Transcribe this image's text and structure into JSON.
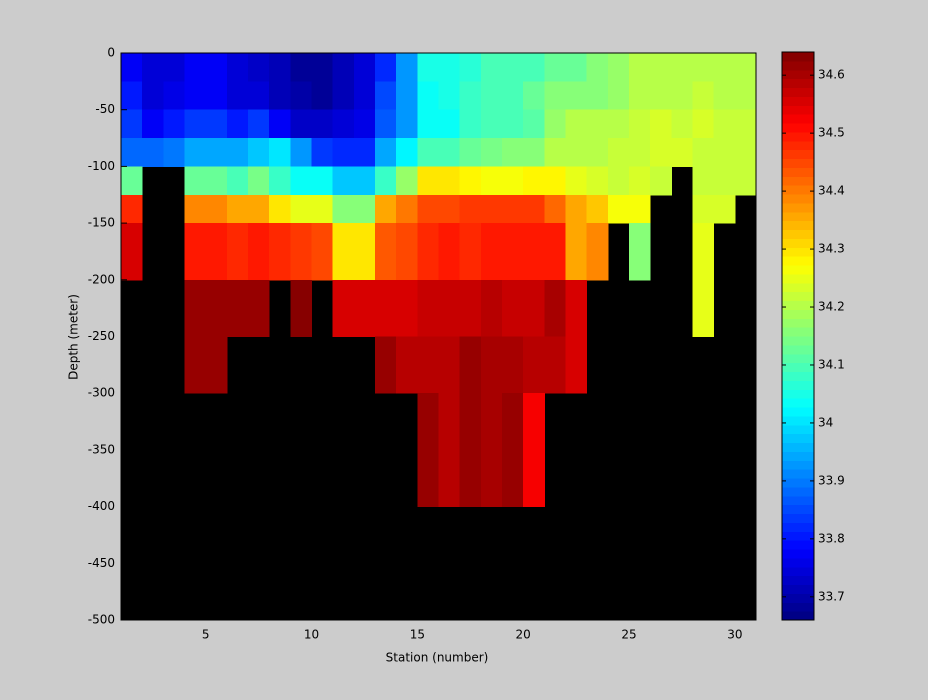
{
  "chart_data": {
    "type": "heatmap",
    "xlabel": "Station (number)",
    "ylabel": "Depth (meter)",
    "x_edges": [
      1,
      2,
      3,
      4,
      5,
      6,
      7,
      8,
      9,
      10,
      11,
      12,
      13,
      14,
      15,
      16,
      17,
      18,
      19,
      20,
      21,
      22,
      23,
      24,
      25,
      26,
      27,
      28,
      29,
      30,
      31
    ],
    "y_edges": [
      0,
      -25,
      -50,
      -75,
      -100,
      -125,
      -150,
      -200,
      -250,
      -300,
      -400
    ],
    "values": [
      [
        33.78,
        33.75,
        33.75,
        33.77,
        33.77,
        33.75,
        33.73,
        33.72,
        33.69,
        33.68,
        33.72,
        33.74,
        33.82,
        33.93,
        34.05,
        34.05,
        34.07,
        34.09,
        34.1,
        34.1,
        34.12,
        34.13,
        34.15,
        34.17,
        34.2,
        34.2,
        34.21,
        34.21,
        34.2,
        34.21
      ],
      [
        33.8,
        33.74,
        33.76,
        33.78,
        33.78,
        33.74,
        33.75,
        33.72,
        33.7,
        33.69,
        33.72,
        33.74,
        33.85,
        33.93,
        34.03,
        34.05,
        34.08,
        34.1,
        34.1,
        34.12,
        34.15,
        34.16,
        34.16,
        34.18,
        34.2,
        34.2,
        34.21,
        34.22,
        34.2,
        34.21
      ],
      [
        33.83,
        33.78,
        33.8,
        33.84,
        33.84,
        33.8,
        33.83,
        33.78,
        33.73,
        33.73,
        33.75,
        33.76,
        33.86,
        33.93,
        34.03,
        34.04,
        34.08,
        34.09,
        34.1,
        34.11,
        34.17,
        34.2,
        34.2,
        34.21,
        34.22,
        34.23,
        34.22,
        34.23,
        34.22,
        34.22
      ],
      [
        33.88,
        33.88,
        33.9,
        33.95,
        33.95,
        33.95,
        33.97,
        34.0,
        33.93,
        33.84,
        33.82,
        33.82,
        33.95,
        34.02,
        34.1,
        34.1,
        34.13,
        34.14,
        34.15,
        34.16,
        34.2,
        34.21,
        34.21,
        34.22,
        34.22,
        34.23,
        34.23,
        34.22,
        34.22,
        34.22
      ],
      [
        34.12,
        null,
        null,
        34.12,
        34.12,
        34.1,
        34.14,
        34.08,
        34.04,
        34.04,
        33.97,
        33.97,
        34.08,
        34.17,
        34.3,
        34.3,
        34.28,
        34.27,
        34.27,
        34.28,
        34.28,
        34.25,
        34.23,
        34.22,
        34.23,
        34.22,
        null,
        34.22,
        34.22,
        34.22
      ],
      [
        34.48,
        null,
        null,
        34.38,
        34.38,
        34.35,
        34.35,
        34.3,
        34.25,
        34.25,
        34.16,
        34.16,
        34.35,
        34.4,
        34.45,
        34.45,
        34.47,
        34.47,
        34.47,
        34.46,
        34.42,
        34.35,
        34.32,
        34.27,
        34.26,
        null,
        null,
        34.23,
        34.23,
        null
      ],
      [
        34.55,
        null,
        null,
        34.5,
        34.5,
        34.48,
        34.5,
        34.48,
        34.46,
        34.45,
        34.3,
        34.3,
        34.43,
        34.45,
        34.48,
        34.5,
        34.48,
        34.5,
        34.5,
        34.5,
        34.5,
        34.35,
        34.38,
        null,
        34.15,
        null,
        null,
        34.25,
        null,
        null
      ],
      [
        null,
        null,
        null,
        34.62,
        34.62,
        34.62,
        34.62,
        null,
        34.63,
        null,
        34.56,
        34.56,
        34.55,
        34.55,
        34.57,
        34.57,
        34.57,
        34.59,
        34.57,
        34.57,
        34.6,
        34.56,
        null,
        null,
        null,
        null,
        null,
        34.25,
        null,
        null
      ],
      [
        null,
        null,
        null,
        34.62,
        34.62,
        null,
        null,
        null,
        null,
        null,
        null,
        null,
        34.62,
        34.59,
        34.59,
        34.59,
        34.62,
        34.6,
        34.6,
        34.58,
        34.58,
        34.55,
        null,
        null,
        null,
        null,
        null,
        null,
        null,
        null
      ],
      [
        null,
        null,
        null,
        null,
        null,
        null,
        null,
        null,
        null,
        null,
        null,
        null,
        null,
        null,
        34.62,
        34.59,
        34.62,
        34.6,
        34.62,
        34.53,
        null,
        null,
        null,
        null,
        null,
        null,
        null,
        null,
        null,
        null
      ]
    ],
    "xlim": [
      1,
      31
    ],
    "ylim": [
      -500,
      0
    ],
    "xticks": [
      5,
      10,
      15,
      20,
      25,
      30
    ],
    "yticks": [
      0,
      -50,
      -100,
      -150,
      -200,
      -250,
      -300,
      -350,
      -400,
      -450,
      -500
    ],
    "clim": [
      33.66,
      34.64
    ],
    "cticks": [
      33.7,
      33.8,
      33.9,
      34,
      34.1,
      34.2,
      34.3,
      34.4,
      34.5,
      34.6
    ],
    "colormap": "jet",
    "background": "#000000"
  }
}
